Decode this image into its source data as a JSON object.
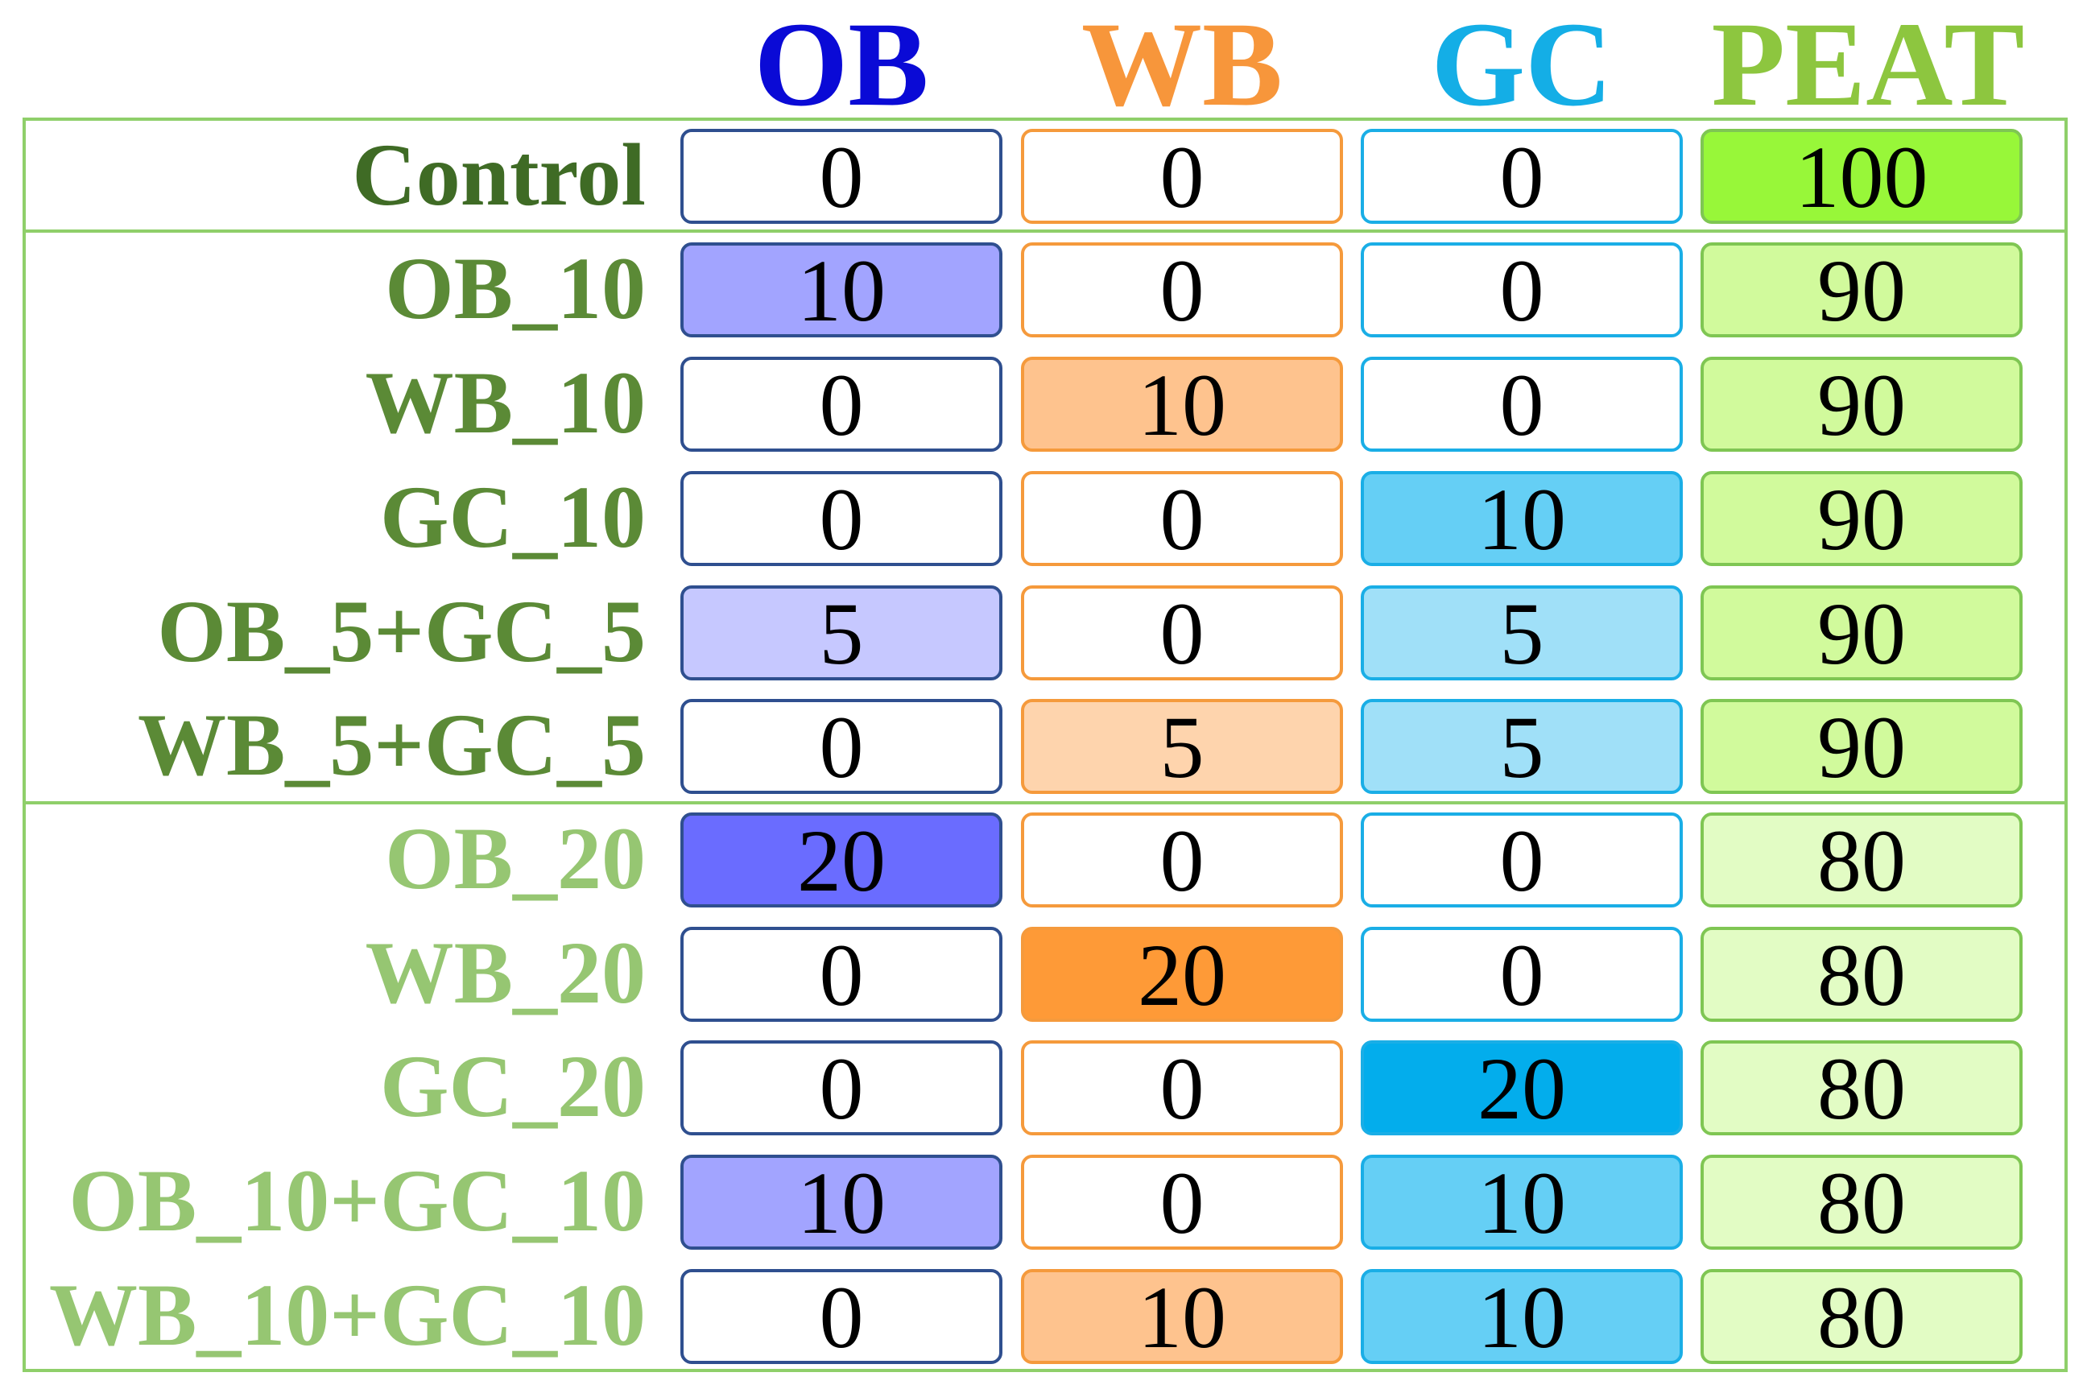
{
  "columns": [
    {
      "label": "OB",
      "color": "#0a0ad6"
    },
    {
      "label": "WB",
      "color": "#f7963b"
    },
    {
      "label": "GC",
      "color": "#14aee6"
    },
    {
      "label": "PEAT",
      "color": "#8dc63f"
    }
  ],
  "rows": [
    {
      "label": "Control",
      "values": [
        "0",
        "0",
        "0",
        "100"
      ],
      "label_color": "#3f6b25"
    },
    {
      "label": "OB_10",
      "values": [
        "10",
        "0",
        "0",
        "90"
      ],
      "label_color": "#5b8a36"
    },
    {
      "label": "WB_10",
      "values": [
        "0",
        "10",
        "0",
        "90"
      ],
      "label_color": "#5b8a36"
    },
    {
      "label": "GC_10",
      "values": [
        "0",
        "0",
        "10",
        "90"
      ],
      "label_color": "#5b8a36"
    },
    {
      "label": "OB_5+GC_5",
      "values": [
        "5",
        "0",
        "5",
        "90"
      ],
      "label_color": "#5b8a36"
    },
    {
      "label": "WB_5+GC_5",
      "values": [
        "0",
        "5",
        "5",
        "90"
      ],
      "label_color": "#5b8a36"
    },
    {
      "label": "OB_20",
      "values": [
        "20",
        "0",
        "0",
        "80"
      ],
      "label_color": "#96c672"
    },
    {
      "label": "WB_20",
      "values": [
        "0",
        "20",
        "0",
        "80"
      ],
      "label_color": "#96c672"
    },
    {
      "label": "GC_20",
      "values": [
        "0",
        "0",
        "20",
        "80"
      ],
      "label_color": "#96c672"
    },
    {
      "label": "OB_10+GC_10",
      "values": [
        "10",
        "0",
        "10",
        "80"
      ],
      "label_color": "#96c672"
    },
    {
      "label": "WB_10+GC_10",
      "values": [
        "0",
        "10",
        "10",
        "80"
      ],
      "label_color": "#96c672"
    }
  ],
  "cell_colors": {
    "border": [
      "#2f4f8f",
      "#f59a3c",
      "#1aaee6",
      "#7fc653"
    ],
    "OB": {
      "0": "#ffffff",
      "5": "#c6c8ff",
      "10": "#a2a4ff",
      "20": "#6a6cff"
    },
    "WB": {
      "0": "#ffffff",
      "5": "#fed4ad",
      "10": "#fec38e",
      "20": "#fe9a37"
    },
    "GC": {
      "0": "#ffffff",
      "5": "#a0e0f8",
      "10": "#65cff5",
      "20": "#03adec"
    },
    "PEAT": {
      "80": "#e2fcc4",
      "90": "#d1fa9c",
      "100": "#98f739"
    }
  }
}
